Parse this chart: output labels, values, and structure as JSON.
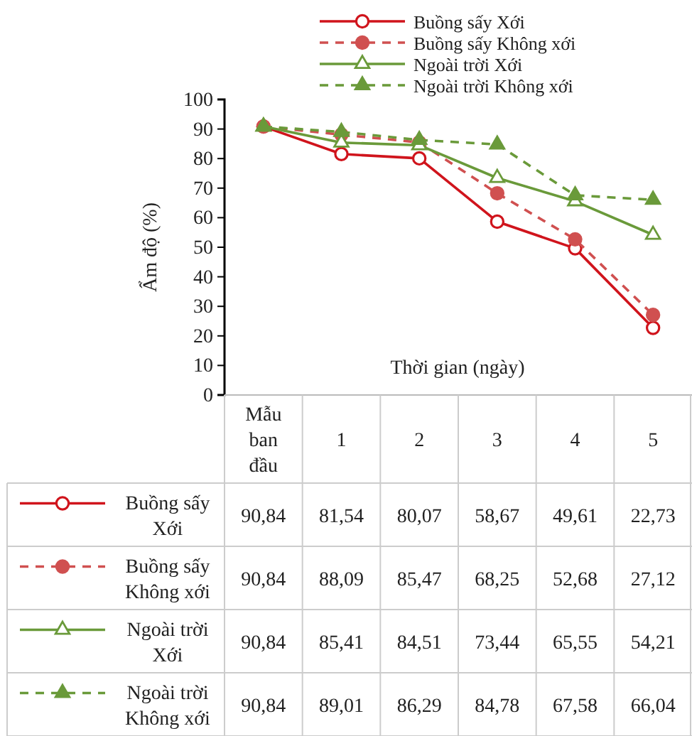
{
  "chart_data": {
    "type": "line",
    "xlabel": "Thời gian (ngày)",
    "ylabel": "Ẩm độ (%)",
    "categories": [
      "Mẫu ban đầu",
      "1",
      "2",
      "3",
      "4",
      "5"
    ],
    "ylim": [
      0,
      100
    ],
    "yticks": [
      0,
      10,
      20,
      30,
      40,
      50,
      60,
      70,
      80,
      90,
      100
    ],
    "legend": "top",
    "grid": false,
    "series": [
      {
        "name": "Buồng sấy Xới",
        "color": "#d0141c",
        "marker": "circle",
        "line_style": "solid",
        "values": [
          90.84,
          81.54,
          80.07,
          58.67,
          49.61,
          22.73
        ],
        "value_labels": [
          "90,84",
          "81,54",
          "80,07",
          "58,67",
          "49,61",
          "22,73"
        ]
      },
      {
        "name": "Buồng sấy Không xới",
        "color": "#d05050",
        "marker": "circle",
        "line_style": "dashed",
        "values": [
          90.84,
          88.09,
          85.47,
          68.25,
          52.68,
          27.12
        ],
        "value_labels": [
          "90,84",
          "88,09",
          "85,47",
          "68,25",
          "52,68",
          "27,12"
        ]
      },
      {
        "name": "Ngoài trời Xới",
        "color": "#6a9a3a",
        "marker": "triangle",
        "line_style": "solid",
        "values": [
          90.84,
          85.41,
          84.51,
          73.44,
          65.55,
          54.21
        ],
        "value_labels": [
          "90,84",
          "85,41",
          "84,51",
          "73,44",
          "65,55",
          "54,21"
        ]
      },
      {
        "name": "Ngoài trời Không xới",
        "color": "#6a9a3a",
        "marker": "triangle",
        "line_style": "dashed",
        "values": [
          90.84,
          89.01,
          86.29,
          84.78,
          67.58,
          66.04
        ],
        "value_labels": [
          "90,84",
          "89,01",
          "86,29",
          "84,78",
          "67,58",
          "66,04"
        ]
      }
    ]
  }
}
